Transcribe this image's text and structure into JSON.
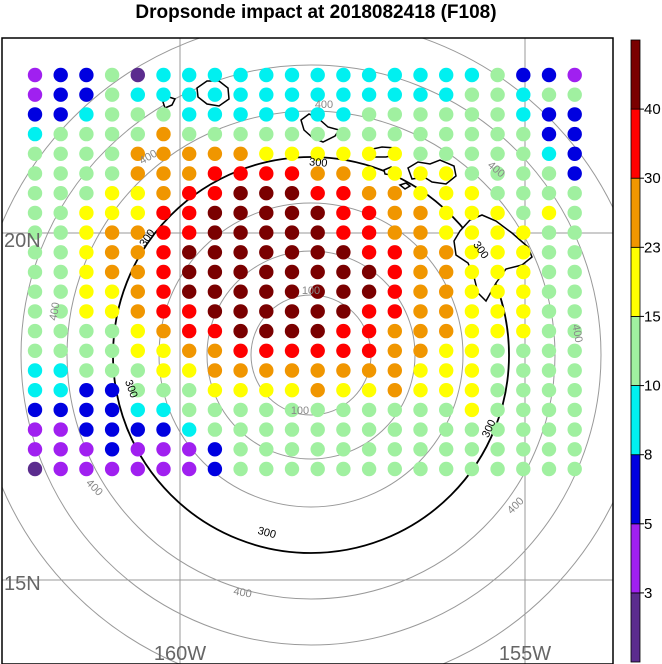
{
  "title": "Dropsonde impact at 2018082418 (F108)",
  "chart_data": {
    "type": "scatter",
    "title": "Dropsonde impact at 2018082418 (F108)",
    "map": {
      "lat_labels": [
        "20N",
        "15N"
      ],
      "lon_labels": [
        "160W",
        "155W"
      ],
      "range_ring_labels": [
        "100",
        "300",
        "400"
      ]
    },
    "colorbar": {
      "tick_labels": [
        "3",
        "5",
        "8",
        "10",
        "15",
        "23",
        "30",
        "40"
      ],
      "bins": [
        {
          "color": "#5b2c8e"
        },
        {
          "color": "#a020f0"
        },
        {
          "color": "#0000e0"
        },
        {
          "color": "#00f0f0"
        },
        {
          "color": "#a0f0a0"
        },
        {
          "color": "#ffff00"
        },
        {
          "color": "#f09600"
        },
        {
          "color": "#ff0000"
        },
        {
          "color": "#7a0000"
        }
      ]
    },
    "grid_values": [
      "1224033333333333334221",
      "1224333333333333344344",
      "2234443333333444444322",
      "3444464444444444444422",
      "4444666665555554444432",
      "4444666777766555544442",
      "4445567788877665554444",
      "4455577888887766555454",
      "4456677888887766555544",
      "4456678888888776655544",
      "4456678888888876655544",
      "4455678888888876655544",
      "4455677888888776655544",
      "4444567788887766655544",
      "4444556677777766554444",
      "3344455666666665554444",
      "3322444555565565554444",
      "2222334444444444454444",
      "1122223444444444444444",
      "1112111244444444444444",
      "0111111244444444444444"
    ]
  }
}
